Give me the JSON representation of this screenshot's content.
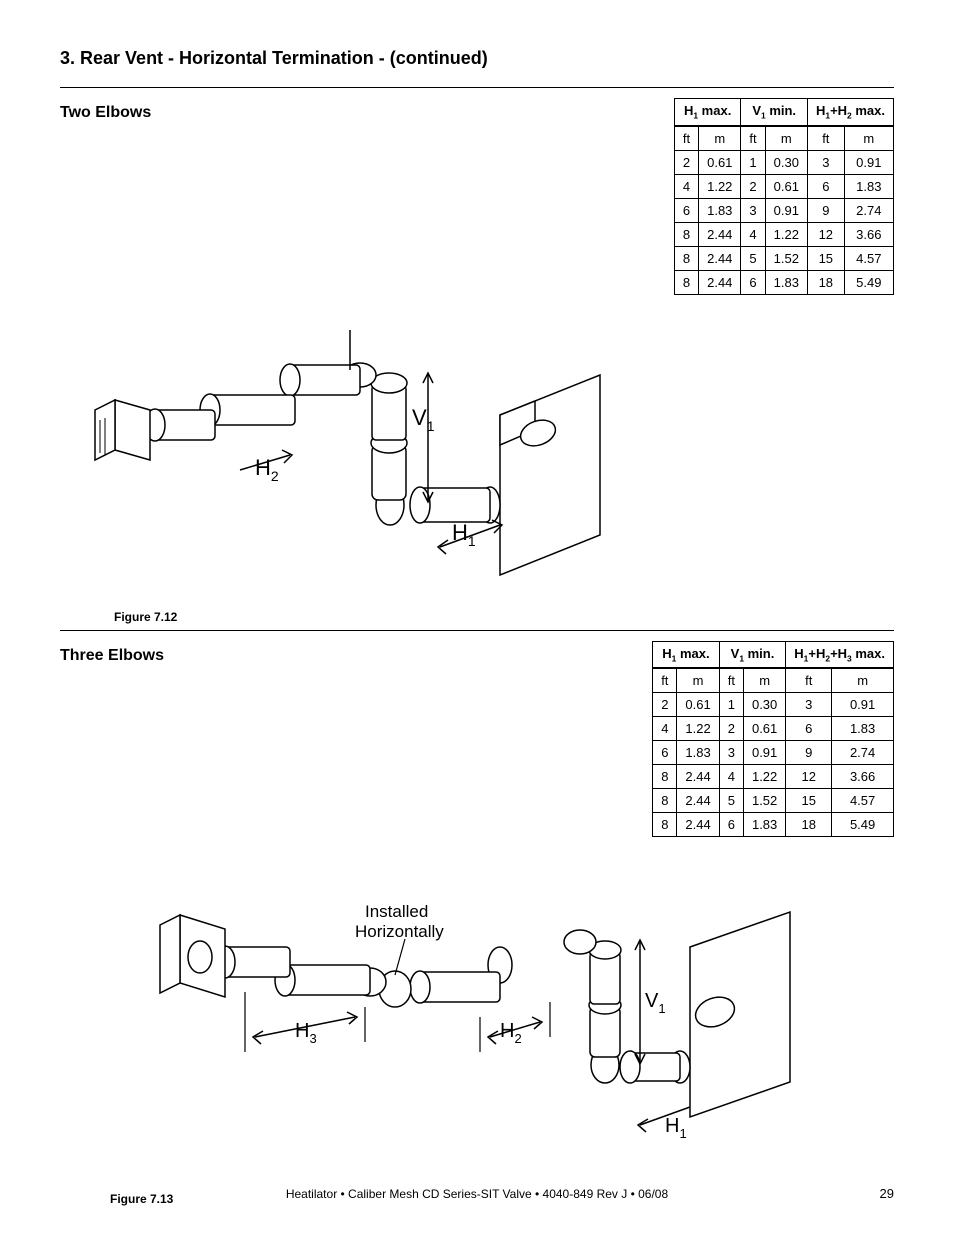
{
  "heading": "3.  Rear Vent - Horizontal Termination - (continued)",
  "section1": {
    "title": "Two Elbows",
    "table": {
      "headers": [
        {
          "html": "H<sub>1</sub> max."
        },
        {
          "html": "V<sub>1</sub> min."
        },
        {
          "html": "H<sub>1</sub>+H<sub>2</sub> max."
        }
      ],
      "unit_row": [
        "ft",
        "m",
        "ft",
        "m",
        "ft",
        "m"
      ],
      "rows": [
        [
          "2",
          "0.61",
          "1",
          "0.30",
          "3",
          "0.91"
        ],
        [
          "4",
          "1.22",
          "2",
          "0.61",
          "6",
          "1.83"
        ],
        [
          "6",
          "1.83",
          "3",
          "0.91",
          "9",
          "2.74"
        ],
        [
          "8",
          "2.44",
          "4",
          "1.22",
          "12",
          "3.66"
        ],
        [
          "8",
          "2.44",
          "5",
          "1.52",
          "15",
          "4.57"
        ],
        [
          "8",
          "2.44",
          "6",
          "1.83",
          "18",
          "5.49"
        ]
      ]
    },
    "figure": {
      "caption": "Figure 7.12",
      "labels": {
        "h1": "H",
        "h1s": "1",
        "h2": "H",
        "h2s": "2",
        "v1": "V",
        "v1s": "1"
      }
    }
  },
  "section2": {
    "title": "Three Elbows",
    "table": {
      "headers": [
        {
          "html": "H<sub>1</sub> max."
        },
        {
          "html": "V<sub>1</sub> min."
        },
        {
          "html": "H<sub>1</sub>+H<sub>2</sub>+H<sub>3</sub> max."
        }
      ],
      "unit_row": [
        "ft",
        "m",
        "ft",
        "m",
        "ft",
        "m"
      ],
      "rows": [
        [
          "2",
          "0.61",
          "1",
          "0.30",
          "3",
          "0.91"
        ],
        [
          "4",
          "1.22",
          "2",
          "0.61",
          "6",
          "1.83"
        ],
        [
          "6",
          "1.83",
          "3",
          "0.91",
          "9",
          "2.74"
        ],
        [
          "8",
          "2.44",
          "4",
          "1.22",
          "12",
          "3.66"
        ],
        [
          "8",
          "2.44",
          "5",
          "1.52",
          "15",
          "4.57"
        ],
        [
          "8",
          "2.44",
          "6",
          "1.83",
          "18",
          "5.49"
        ]
      ]
    },
    "figure": {
      "caption": "Figure 7.13",
      "labels": {
        "installed1": "Installed",
        "installed2": "Horizontally",
        "h1": "H",
        "h1s": "1",
        "h2": "H",
        "h2s": "2",
        "h3": "H",
        "h3s": "3",
        "v1": "V",
        "v1s": "1"
      }
    }
  },
  "footer": "Heatilator • Caliber Mesh CD Series-SIT Valve • 4040-849 Rev J • 06/08",
  "pagenum": "29"
}
